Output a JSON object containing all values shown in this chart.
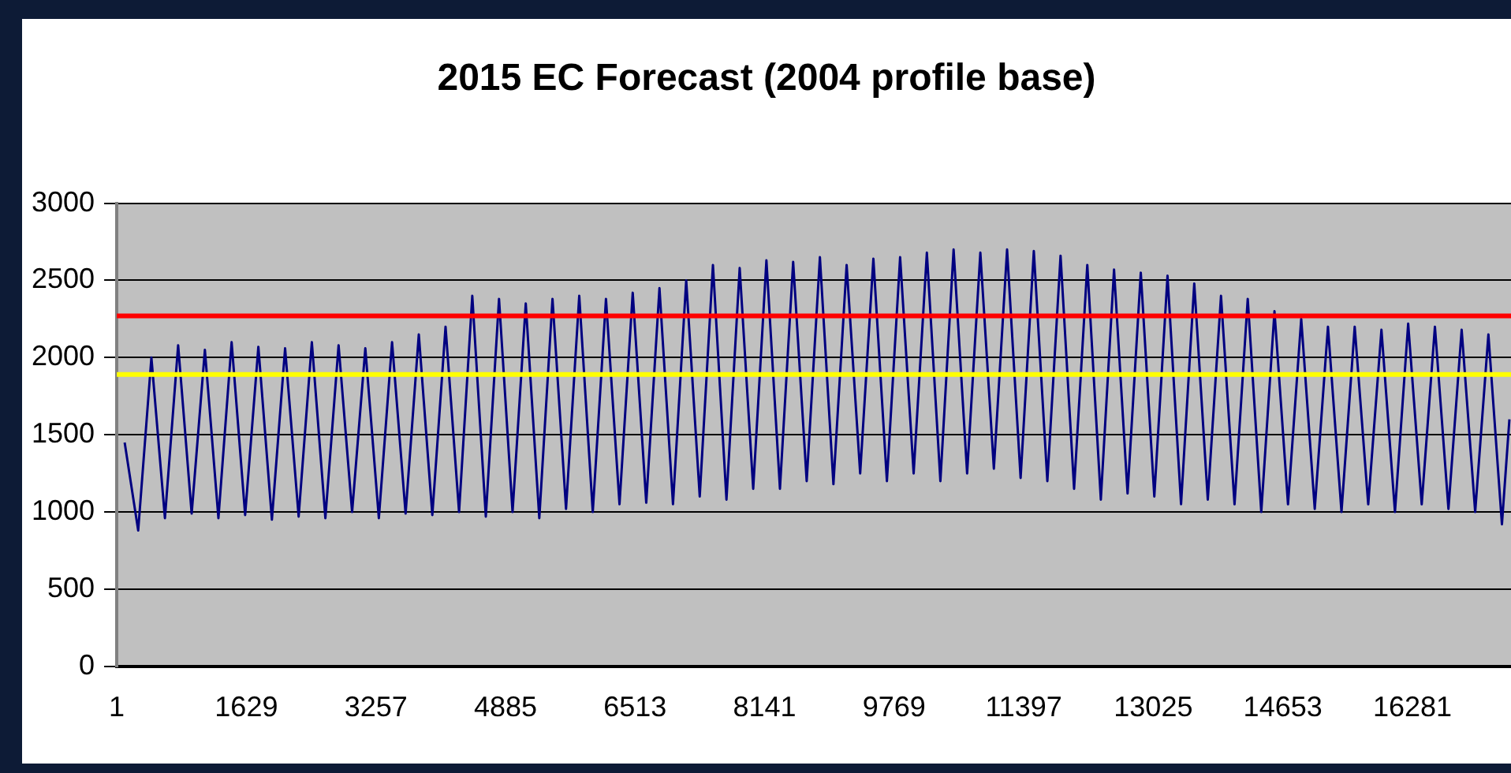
{
  "chart_data": {
    "type": "line",
    "title": "2015 EC Forecast (2004 profile base)",
    "x": [
      100,
      270,
      436,
      606,
      772,
      942,
      1108,
      1278,
      1444,
      1614,
      1780,
      1950,
      2116,
      2286,
      2452,
      2622,
      2788,
      2958,
      3124,
      3294,
      3460,
      3630,
      3796,
      3966,
      4132,
      4302,
      4468,
      4638,
      4804,
      4974,
      5140,
      5310,
      5476,
      5646,
      5812,
      5982,
      6148,
      6318,
      6484,
      6654,
      6820,
      6990,
      7156,
      7326,
      7492,
      7662,
      7828,
      7998,
      8164,
      8334,
      8500,
      8670,
      8836,
      9006,
      9172,
      9342,
      9508,
      9678,
      9844,
      10014,
      10180,
      10350,
      10516,
      10686,
      10852,
      11022,
      11188,
      11358,
      11524,
      11694,
      11860,
      12030,
      12196,
      12366,
      12532,
      12702,
      12868,
      13038,
      13204,
      13374,
      13540,
      13710,
      13876,
      14046,
      14212,
      14382,
      14548,
      14718,
      14884,
      15054,
      15220,
      15390,
      15556,
      15726,
      15892,
      16062,
      16228,
      16398,
      16564,
      16734,
      16900,
      17070,
      17236,
      17406,
      17500
    ],
    "series": [
      {
        "color": "#000080",
        "values": [
          1450,
          880,
          2000,
          960,
          2080,
          990,
          2050,
          960,
          2100,
          980,
          2070,
          950,
          2060,
          970,
          2100,
          960,
          2080,
          1000,
          2060,
          960,
          2100,
          990,
          2150,
          980,
          2200,
          1000,
          2400,
          970,
          2380,
          1000,
          2350,
          960,
          2380,
          1020,
          2400,
          1000,
          2380,
          1050,
          2420,
          1060,
          2450,
          1050,
          2500,
          1100,
          2600,
          1080,
          2580,
          1150,
          2630,
          1150,
          2620,
          1200,
          2650,
          1180,
          2600,
          1250,
          2640,
          1200,
          2650,
          1250,
          2680,
          1200,
          2700,
          1250,
          2680,
          1280,
          2700,
          1220,
          2690,
          1200,
          2660,
          1150,
          2600,
          1080,
          2570,
          1120,
          2550,
          1100,
          2530,
          1050,
          2480,
          1080,
          2400,
          1050,
          2380,
          1000,
          2300,
          1050,
          2250,
          1020,
          2200,
          1000,
          2200,
          1050,
          2180,
          1000,
          2220,
          1050,
          2200,
          1020,
          2180,
          1000,
          2150,
          920,
          1600
        ]
      }
    ],
    "xlim": [
      1,
      17520
    ],
    "xticks": [
      1,
      1629,
      3257,
      4885,
      6513,
      8141,
      9769,
      11397,
      13025,
      14653,
      16281
    ],
    "ylim": [
      0,
      3000
    ],
    "yticks": [
      0,
      500,
      1000,
      1500,
      2000,
      2500,
      3000
    ],
    "grid": "y",
    "marker": "none",
    "line_style": "solid",
    "ref_lines": [
      {
        "axis": "y",
        "value": 2270,
        "color": "#ff0000"
      },
      {
        "axis": "y",
        "value": 1890,
        "color": "#ffff00"
      }
    ]
  }
}
